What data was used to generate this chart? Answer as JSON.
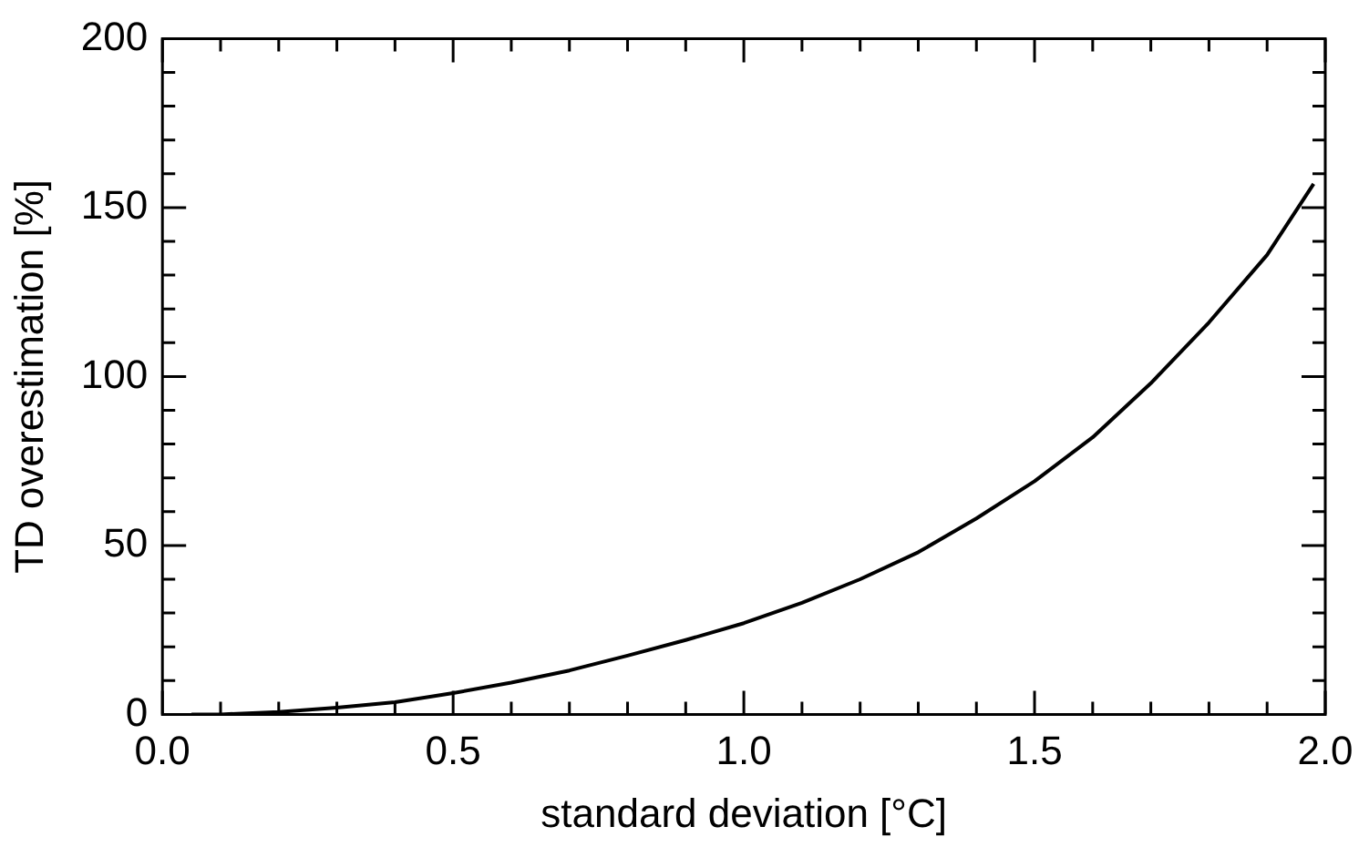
{
  "chart_data": {
    "type": "line",
    "xlabel": "standard deviation [°C]",
    "ylabel": "TD overestimation [%]",
    "x": [
      0.05,
      0.1,
      0.2,
      0.3,
      0.4,
      0.5,
      0.6,
      0.7,
      0.8,
      0.9,
      1.0,
      1.1,
      1.2,
      1.3,
      1.4,
      1.5,
      1.6,
      1.7,
      1.8,
      1.9,
      1.98
    ],
    "series": [
      {
        "color": "#000000",
        "values": [
          0,
          0,
          0.7,
          2,
          3.6,
          6.3,
          9.4,
          13,
          17.4,
          22,
          27,
          33,
          40,
          48,
          58,
          69,
          82,
          98,
          116,
          136,
          157
        ]
      }
    ],
    "xlim": [
      0,
      2
    ],
    "ylim": [
      0,
      200
    ],
    "xticks": [
      {
        "value": 0,
        "label": "0.0"
      },
      {
        "value": 0.1,
        "label": null
      },
      {
        "value": 0.2,
        "label": null
      },
      {
        "value": 0.3,
        "label": null
      },
      {
        "value": 0.4,
        "label": null
      },
      {
        "value": 0.5,
        "label": "0.5"
      },
      {
        "value": 0.6,
        "label": null
      },
      {
        "value": 0.7,
        "label": null
      },
      {
        "value": 0.8,
        "label": null
      },
      {
        "value": 0.9,
        "label": null
      },
      {
        "value": 1,
        "label": "1.0"
      },
      {
        "value": 1.1,
        "label": null
      },
      {
        "value": 1.2,
        "label": null
      },
      {
        "value": 1.3,
        "label": null
      },
      {
        "value": 1.4,
        "label": null
      },
      {
        "value": 1.5,
        "label": "1.5"
      },
      {
        "value": 1.6,
        "label": null
      },
      {
        "value": 1.7,
        "label": null
      },
      {
        "value": 1.8,
        "label": null
      },
      {
        "value": 1.9,
        "label": null
      },
      {
        "value": 2,
        "label": "2.0"
      }
    ],
    "yticks": [
      0,
      {
        "value": 10,
        "label": null
      },
      {
        "value": 20,
        "label": null
      },
      {
        "value": 30,
        "label": null
      },
      {
        "value": 40,
        "label": null
      },
      50,
      {
        "value": 60,
        "label": null
      },
      {
        "value": 70,
        "label": null
      },
      {
        "value": 80,
        "label": null
      },
      {
        "value": 90,
        "label": null
      },
      100,
      {
        "value": 110,
        "label": null
      },
      {
        "value": 120,
        "label": null
      },
      {
        "value": 130,
        "label": null
      },
      {
        "value": 140,
        "label": null
      },
      150,
      {
        "value": 160,
        "label": null
      },
      {
        "value": 170,
        "label": null
      },
      {
        "value": 180,
        "label": null
      },
      {
        "value": 190,
        "label": null
      },
      200
    ],
    "grid": false,
    "legend": false,
    "marker": "none",
    "line_style": "solid"
  }
}
